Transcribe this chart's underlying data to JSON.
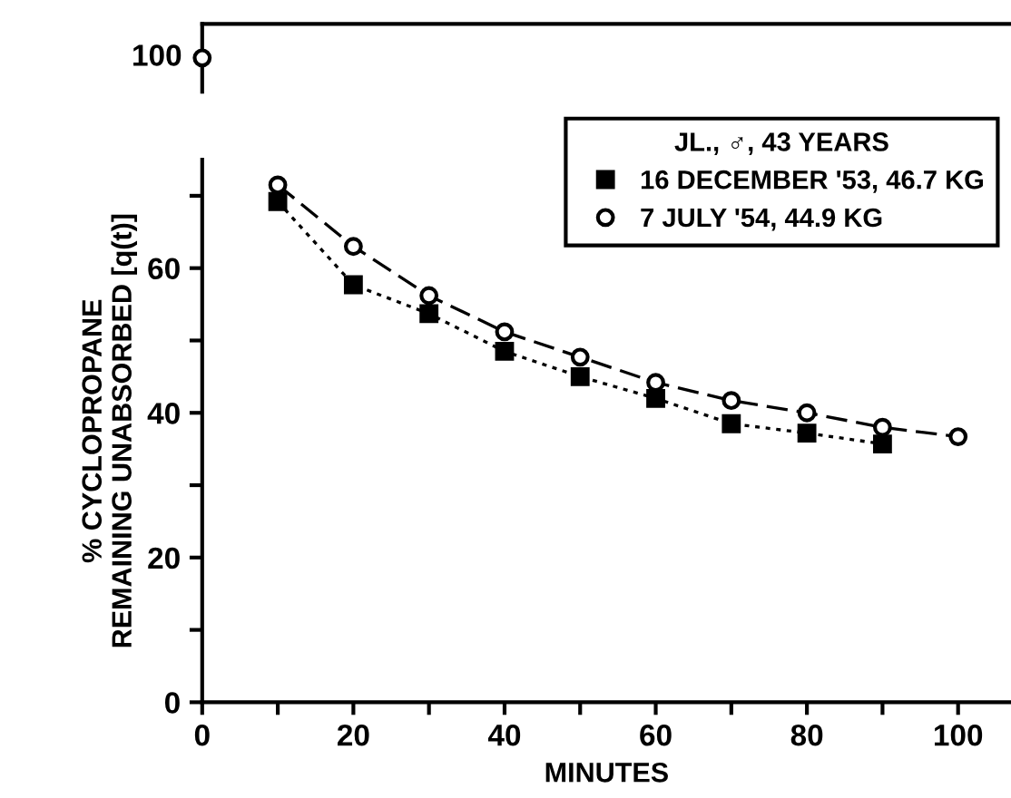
{
  "chart_data": [
    {
      "type": "other",
      "series": [
        {
          "color": "#000000",
          "marker": "circle",
          "values": [
            100
          ],
          "value_labels": [
            "100"
          ]
        }
      ]
    },
    {
      "type": "line",
      "ylabel": "% CYCLOPROPANE\nREMAINING UNABSORBED [q(t)]",
      "xlabel": "MINUTES",
      "legend_title": "JL., ♂, 43 YEARS",
      "legend": "top right",
      "grid": false,
      "xlim": [
        0,
        107
      ],
      "ylim": [
        0,
        75
      ],
      "xticks": [
        0,
        {
          "value": 10,
          "label": null
        },
        20,
        {
          "value": 30,
          "label": null
        },
        40,
        {
          "value": 50,
          "label": null
        },
        60,
        {
          "value": 70,
          "label": null
        },
        80,
        {
          "value": 90,
          "label": null
        },
        100
      ],
      "yticks": [
        0,
        {
          "value": 10,
          "label": null
        },
        20,
        {
          "value": 30,
          "label": null
        },
        40,
        {
          "value": 50,
          "label": null
        },
        60,
        {
          "value": 70,
          "label": null
        }
      ],
      "x": [
        10,
        20,
        30,
        40,
        50,
        60,
        70,
        80,
        90,
        100
      ],
      "series": [
        {
          "name": "16 DECEMBER '53, 46.7 KG",
          "color": "#000000",
          "marker": "square",
          "line_style": "dotted",
          "values": [
            69.2,
            57.7,
            53.7,
            48.5,
            45,
            42,
            38.5,
            37.2,
            35.7,
            null
          ]
        },
        {
          "name": "7 JULY '54, 44.9 KG",
          "color": "#000000",
          "marker": "circle",
          "line_style": "dashed",
          "values": [
            71.5,
            63,
            56.2,
            51.2,
            47.7,
            44.2,
            41.7,
            40,
            38,
            36.7
          ]
        }
      ]
    }
  ]
}
